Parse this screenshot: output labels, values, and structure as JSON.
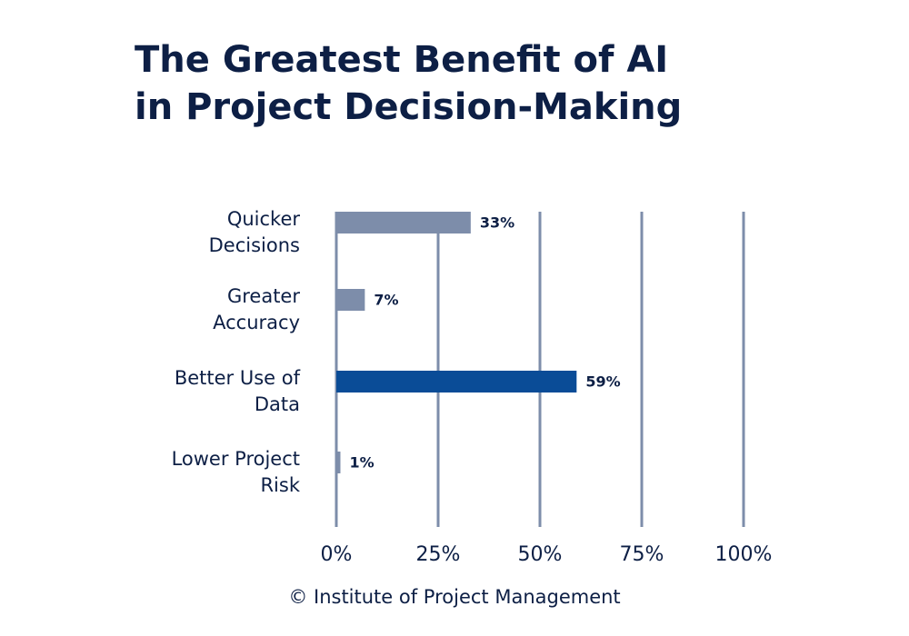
{
  "chart_data": {
    "type": "bar",
    "orientation": "horizontal",
    "title": "The Greatest Benefit of AI in Project Decision-Making",
    "categories": [
      "Quicker Decisions",
      "Greater Accuracy",
      "Better Use of Data",
      "Lower Project Risk"
    ],
    "values": [
      33,
      7,
      59,
      1
    ],
    "value_labels": [
      "33%",
      "7%",
      "59%",
      "1%"
    ],
    "colors": [
      "#7d8daa",
      "#7d8daa",
      "#0a4c97",
      "#7d8daa"
    ],
    "xlim": [
      0,
      100
    ],
    "xticks": [
      {
        "value": 0,
        "label": "0%"
      },
      {
        "value": 25,
        "label": "25%"
      },
      {
        "value": 50,
        "label": "50%"
      },
      {
        "value": 75,
        "label": "75%"
      },
      {
        "value": 100,
        "label": "100%"
      }
    ],
    "grid": true,
    "source": "© Institute of Project Management"
  }
}
